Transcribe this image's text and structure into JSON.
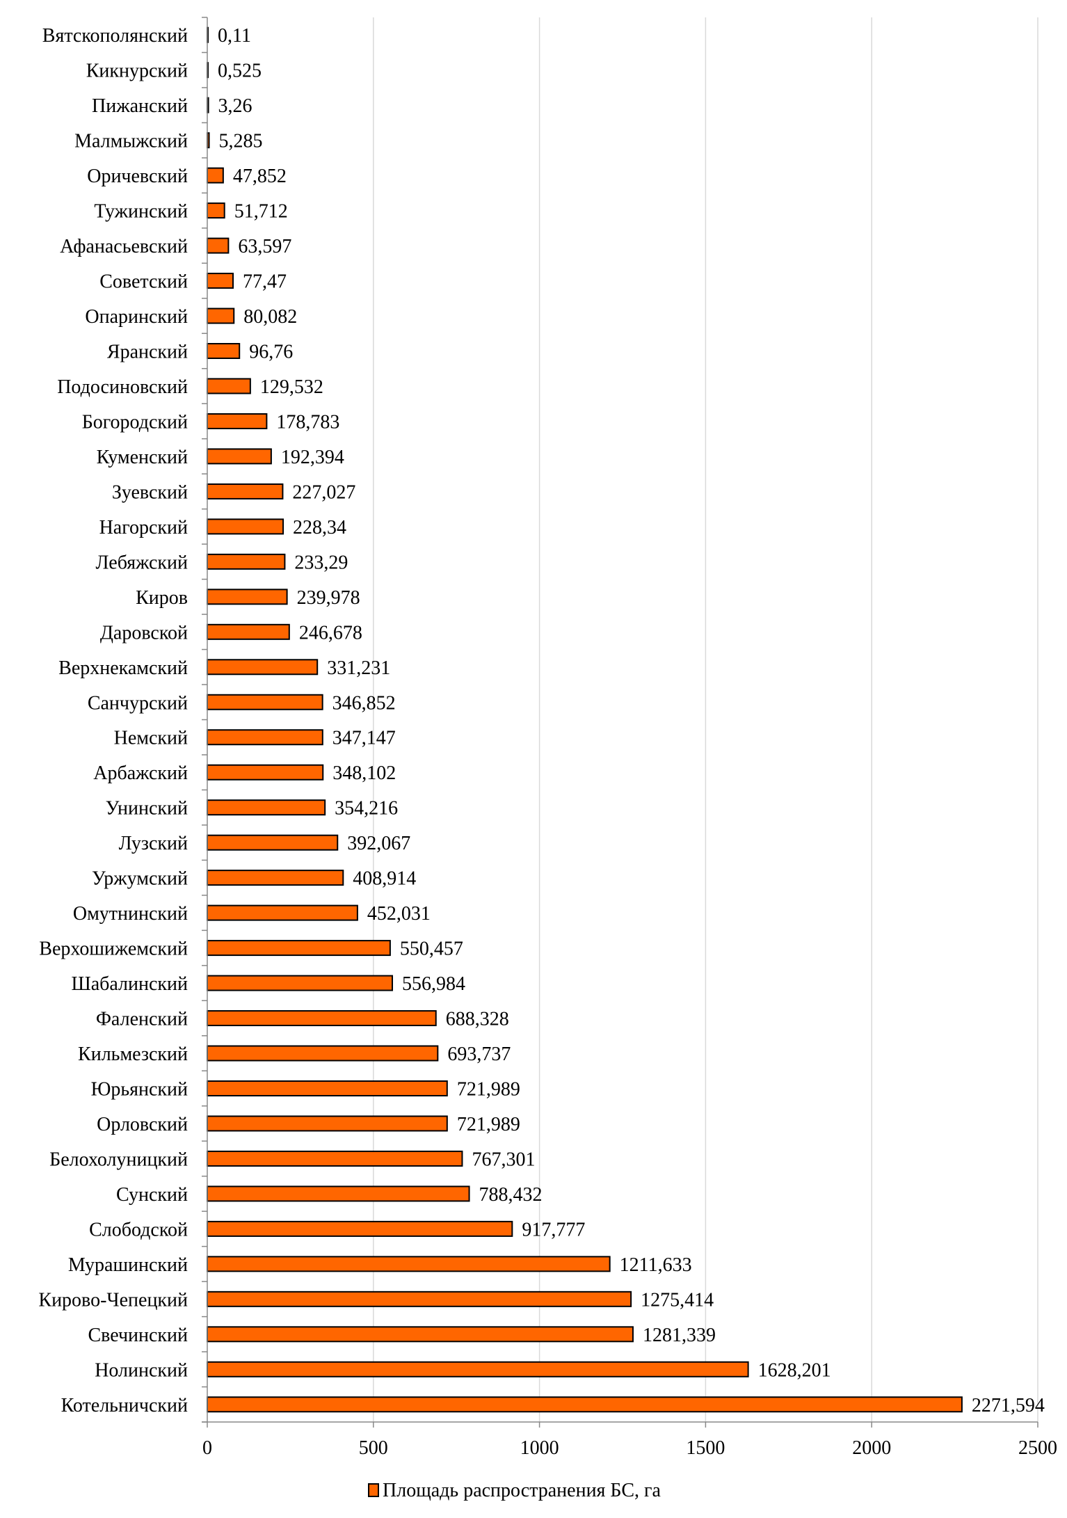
{
  "chart_data": {
    "type": "bar",
    "orientation": "horizontal",
    "title": "",
    "xlabel": "",
    "ylabel": "",
    "xlim": [
      0,
      2500
    ],
    "xticks": [
      0,
      500,
      1000,
      1500,
      2000,
      2500
    ],
    "grid": "vertical",
    "legend_position": "bottom",
    "bar_color": "#FF6600",
    "series": [
      {
        "name": "Площадь распространения БС, га"
      }
    ],
    "categories": [
      "Вятскополянский",
      "Кикнурский",
      "Пижанский",
      "Малмыжский",
      "Оричевский",
      "Тужинский",
      "Афанасьевский",
      "Советский",
      "Опаринский",
      "Яранский",
      "Подосиновский",
      "Богородский",
      "Куменский",
      "Зуевский",
      "Нагорский",
      "Лебяжский",
      "Киров",
      "Даровской",
      "Верхнекамский",
      "Санчурский",
      "Немский",
      "Арбажский",
      "Унинский",
      "Лузский",
      "Уржумский",
      "Омутнинский",
      "Верхошижемский",
      "Шабалинский",
      "Фаленский",
      "Кильмезский",
      "Юрьянский",
      "Орловский",
      "Белохолуницкий",
      "Сунский",
      "Слободской",
      "Мурашинский",
      "Кирово-Чепецкий",
      "Свечинский",
      "Нолинский",
      "Котельничский"
    ],
    "values": [
      0.11,
      0.525,
      3.26,
      5.285,
      47.852,
      51.712,
      63.597,
      77.47,
      80.082,
      96.76,
      129.532,
      178.783,
      192.394,
      227.027,
      228.34,
      233.29,
      239.978,
      246.678,
      331.231,
      346.852,
      347.147,
      348.102,
      354.216,
      392.067,
      408.914,
      452.031,
      550.457,
      556.984,
      688.328,
      693.737,
      721.989,
      721.989,
      767.301,
      788.432,
      917.777,
      1211.633,
      1275.414,
      1281.339,
      1628.201,
      2271.594
    ],
    "labels": [
      "0,11",
      "0,525",
      "3,26",
      "5,285",
      "47,852",
      "51,712",
      "63,597",
      "77,47",
      "80,082",
      "96,76",
      "129,532",
      "178,783",
      "192,394",
      "227,027",
      "228,34",
      "233,29",
      "239,978",
      "246,678",
      "331,231",
      "346,852",
      "347,147",
      "348,102",
      "354,216",
      "392,067",
      "408,914",
      "452,031",
      "550,457",
      "556,984",
      "688,328",
      "693,737",
      "721,989",
      "721,989",
      "767,301",
      "788,432",
      "917,777",
      "1211,633",
      "1275,414",
      "1281,339",
      "1628,201",
      "2271,594"
    ]
  }
}
